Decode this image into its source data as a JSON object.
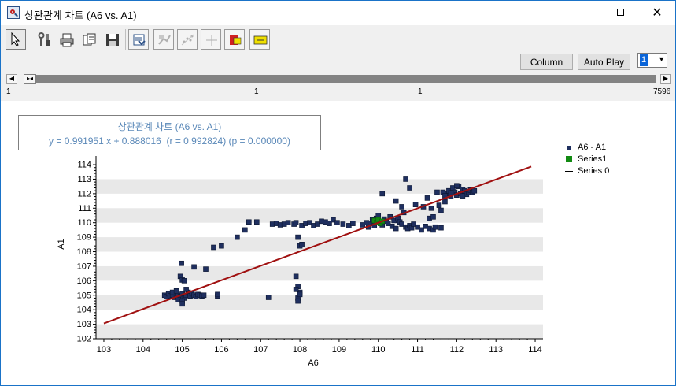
{
  "window": {
    "title": "상관관계 차트 (A6 vs. A1)",
    "minimize": "minimize",
    "maximize": "maximize",
    "close": "✕"
  },
  "toolbar": {
    "icons": [
      "pointer-icon",
      "tools-icon",
      "printer-icon",
      "copy-icon",
      "save-icon",
      "export-icon",
      "fit-icon",
      "scatter-tool-icon",
      "crosshair-icon",
      "vectorize-icon",
      "label-icon"
    ],
    "column_label": "Column",
    "autoplay_label": "Auto Play",
    "spin_value": "1"
  },
  "range": {
    "start": "1",
    "left_marker": "1",
    "right_marker": "1",
    "end": "7596"
  },
  "chart": {
    "box_title": "상관관계 차트 (A6 vs. A1)",
    "equation": "y = 0.991951 x + 0.888016  (r = 0.992824) (p = 0.000000)",
    "colors": {
      "points": "#1f2f5f",
      "series1": "#128a12",
      "fit_line": "#a01010",
      "band": "#e8e8e8"
    }
  },
  "chart_data": {
    "type": "scatter",
    "xlabel": "A6",
    "ylabel": "A1",
    "xlim": [
      102.8,
      114.2
    ],
    "ylim": [
      102,
      114.6
    ],
    "x_ticks": [
      103,
      104,
      105,
      106,
      107,
      108,
      109,
      110,
      111,
      112,
      113,
      114
    ],
    "y_ticks": [
      102,
      103,
      104,
      105,
      106,
      107,
      108,
      109,
      110,
      111,
      112,
      113,
      114
    ],
    "legend": [
      "A6 - A1",
      "Series1",
      "Series 0"
    ],
    "legend_position": "right",
    "fit": {
      "slope": 0.991951,
      "intercept": 0.888016,
      "x_range": [
        103,
        113.9
      ]
    },
    "series": [
      {
        "name": "A6 - A1",
        "points": [
          [
            104.55,
            105.0
          ],
          [
            104.6,
            104.9
          ],
          [
            104.65,
            105.1
          ],
          [
            104.7,
            104.95
          ],
          [
            104.75,
            105.0
          ],
          [
            104.8,
            104.85
          ],
          [
            104.85,
            105.05
          ],
          [
            104.9,
            105.0
          ],
          [
            104.95,
            104.9
          ],
          [
            105.0,
            105.1
          ],
          [
            105.05,
            104.8
          ],
          [
            105.1,
            105.0
          ],
          [
            105.15,
            105.2
          ],
          [
            105.2,
            104.95
          ],
          [
            105.25,
            105.1
          ],
          [
            105.3,
            105.0
          ],
          [
            105.35,
            104.9
          ],
          [
            105.4,
            105.05
          ],
          [
            105.45,
            105.0
          ],
          [
            105.5,
            104.95
          ],
          [
            105.55,
            105.0
          ],
          [
            104.75,
            105.2
          ],
          [
            104.9,
            104.7
          ],
          [
            105.0,
            104.6
          ],
          [
            105.0,
            104.4
          ],
          [
            104.95,
            106.3
          ],
          [
            105.0,
            106.05
          ],
          [
            104.98,
            107.2
          ],
          [
            105.05,
            106.0
          ],
          [
            105.3,
            106.95
          ],
          [
            104.85,
            105.3
          ],
          [
            105.1,
            105.4
          ],
          [
            105.6,
            106.8
          ],
          [
            105.9,
            104.95
          ],
          [
            105.9,
            105.05
          ],
          [
            105.8,
            108.3
          ],
          [
            106.0,
            108.4
          ],
          [
            106.4,
            109.0
          ],
          [
            106.6,
            109.5
          ],
          [
            106.7,
            110.05
          ],
          [
            106.9,
            110.05
          ],
          [
            107.2,
            104.85
          ],
          [
            107.3,
            109.9
          ],
          [
            107.4,
            109.95
          ],
          [
            107.5,
            109.85
          ],
          [
            107.6,
            109.9
          ],
          [
            107.7,
            110.0
          ],
          [
            107.85,
            109.9
          ],
          [
            107.9,
            110.0
          ],
          [
            107.95,
            109.0
          ],
          [
            108.0,
            108.4
          ],
          [
            108.05,
            108.5
          ],
          [
            107.9,
            106.3
          ],
          [
            107.95,
            105.6
          ],
          [
            108.0,
            105.2
          ],
          [
            107.95,
            104.8
          ],
          [
            108.0,
            105.05
          ],
          [
            107.9,
            105.4
          ],
          [
            107.95,
            104.6
          ],
          [
            108.05,
            109.8
          ],
          [
            108.15,
            109.95
          ],
          [
            108.25,
            110.0
          ],
          [
            108.35,
            109.8
          ],
          [
            108.45,
            109.9
          ],
          [
            108.55,
            110.1
          ],
          [
            108.65,
            110.05
          ],
          [
            108.75,
            109.95
          ],
          [
            108.85,
            110.2
          ],
          [
            108.95,
            110.0
          ],
          [
            109.1,
            109.9
          ],
          [
            109.25,
            109.8
          ],
          [
            109.35,
            109.95
          ],
          [
            109.6,
            109.85
          ],
          [
            109.7,
            110.0
          ],
          [
            109.75,
            109.7
          ],
          [
            109.8,
            109.95
          ],
          [
            109.85,
            110.2
          ],
          [
            109.9,
            109.8
          ],
          [
            109.95,
            110.3
          ],
          [
            110.0,
            110.5
          ],
          [
            110.05,
            110.0
          ],
          [
            110.1,
            109.85
          ],
          [
            110.15,
            110.25
          ],
          [
            110.2,
            110.1
          ],
          [
            110.25,
            109.95
          ],
          [
            110.3,
            110.4
          ],
          [
            110.35,
            109.75
          ],
          [
            110.4,
            110.15
          ],
          [
            110.45,
            109.6
          ],
          [
            110.5,
            110.3
          ],
          [
            110.55,
            110.05
          ],
          [
            110.6,
            109.9
          ],
          [
            110.65,
            110.7
          ],
          [
            110.7,
            109.7
          ],
          [
            110.75,
            109.6
          ],
          [
            110.8,
            109.8
          ],
          [
            110.85,
            109.65
          ],
          [
            110.9,
            109.9
          ],
          [
            111.0,
            109.7
          ],
          [
            111.1,
            109.5
          ],
          [
            111.2,
            109.75
          ],
          [
            111.3,
            109.6
          ],
          [
            111.4,
            109.5
          ],
          [
            111.45,
            109.7
          ],
          [
            111.6,
            109.65
          ],
          [
            111.3,
            110.3
          ],
          [
            111.35,
            111.0
          ],
          [
            111.4,
            110.4
          ],
          [
            110.1,
            112.0
          ],
          [
            110.45,
            111.5
          ],
          [
            110.6,
            111.1
          ],
          [
            110.7,
            113.0
          ],
          [
            110.8,
            112.4
          ],
          [
            110.95,
            111.25
          ],
          [
            111.15,
            111.1
          ],
          [
            111.25,
            111.7
          ],
          [
            111.5,
            112.1
          ],
          [
            111.55,
            111.2
          ],
          [
            111.6,
            110.85
          ],
          [
            111.7,
            111.45
          ],
          [
            111.75,
            112.0
          ],
          [
            111.8,
            112.2
          ],
          [
            111.85,
            111.8
          ],
          [
            111.9,
            112.4
          ],
          [
            111.95,
            112.1
          ],
          [
            112.0,
            111.9
          ],
          [
            112.05,
            112.5
          ],
          [
            112.1,
            112.0
          ],
          [
            112.15,
            112.3
          ],
          [
            112.2,
            112.2
          ],
          [
            112.25,
            111.95
          ],
          [
            112.3,
            112.1
          ],
          [
            112.35,
            112.25
          ],
          [
            112.4,
            112.1
          ],
          [
            112.45,
            112.2
          ],
          [
            111.65,
            112.1
          ],
          [
            111.7,
            111.85
          ],
          [
            112.0,
            112.55
          ],
          [
            111.85,
            112.05
          ],
          [
            112.15,
            111.85
          ]
        ]
      },
      {
        "name": "Series1",
        "points": [
          [
            109.9,
            110.15
          ],
          [
            109.95,
            110.0
          ],
          [
            110.0,
            110.2
          ],
          [
            110.05,
            109.95
          ],
          [
            110.1,
            110.1
          ]
        ]
      },
      {
        "name": "Series 0",
        "points": []
      }
    ]
  }
}
